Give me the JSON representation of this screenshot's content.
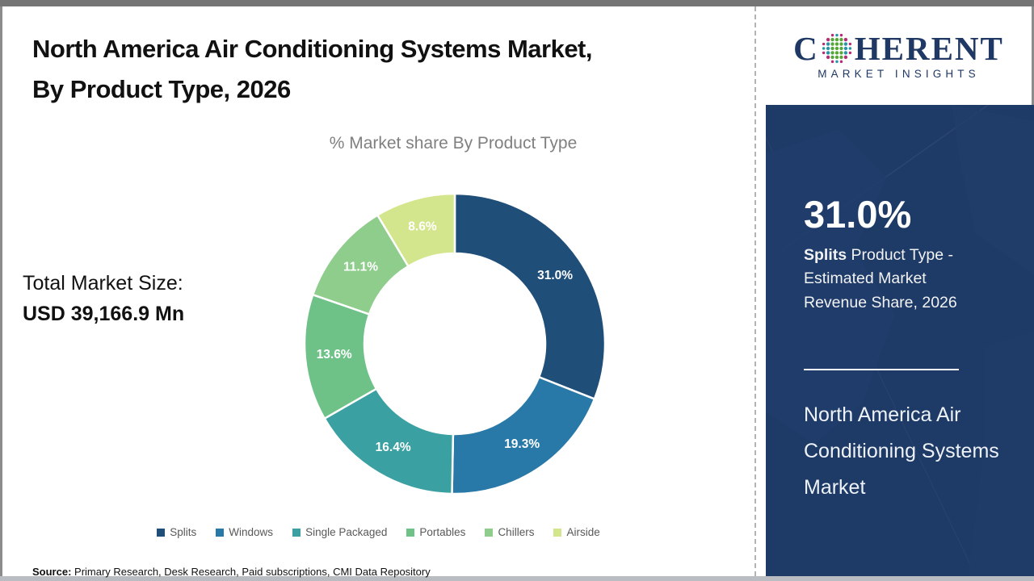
{
  "header": {
    "title_line1": "North America Air Conditioning Systems Market,",
    "title_line2": "By Product Type, 2026"
  },
  "subtitle": "% Market share By Product Type",
  "market_size": {
    "label": "Total Market Size:",
    "value": "USD 39,166.9 Mn"
  },
  "chart_data": {
    "type": "pie",
    "donut": true,
    "title": "% Market share By Product Type",
    "categories": [
      "Splits",
      "Windows",
      "Single Packaged",
      "Portables",
      "Chillers",
      "Airside"
    ],
    "values": [
      31.0,
      19.3,
      16.4,
      13.6,
      11.1,
      8.6
    ],
    "labels": [
      "31.0%",
      "19.3%",
      "16.4%",
      "13.6%",
      "11.1%",
      "8.6%"
    ],
    "colors": [
      "#1f4e79",
      "#2878a8",
      "#3aa0a2",
      "#6fc287",
      "#8ecd8c",
      "#d4e68d"
    ],
    "start_angle_deg": 0,
    "direction": "clockwise",
    "inner_radius_ratio": 0.6,
    "legend_position": "bottom",
    "label_color": "#ffffff"
  },
  "source": {
    "label": "Source:",
    "text": " Primary Research, Desk Research, Paid subscriptions, CMI Data Repository"
  },
  "logo": {
    "letter_c": "C",
    "word_rest": "HERENT",
    "subtext": "MARKET INSIGHTS",
    "navy": "#1f3864",
    "globe_colors": {
      "green": "#56a638",
      "teal": "#2596a8",
      "magenta": "#bb2a77"
    }
  },
  "side_panel": {
    "bg": "#1e3a66",
    "stat_value": "31.0%",
    "stat_bold": "Splits",
    "stat_rest": " Product Type - Estimated Market Revenue Share, 2026",
    "footer_title": "North America Air Conditioning Systems Market"
  }
}
